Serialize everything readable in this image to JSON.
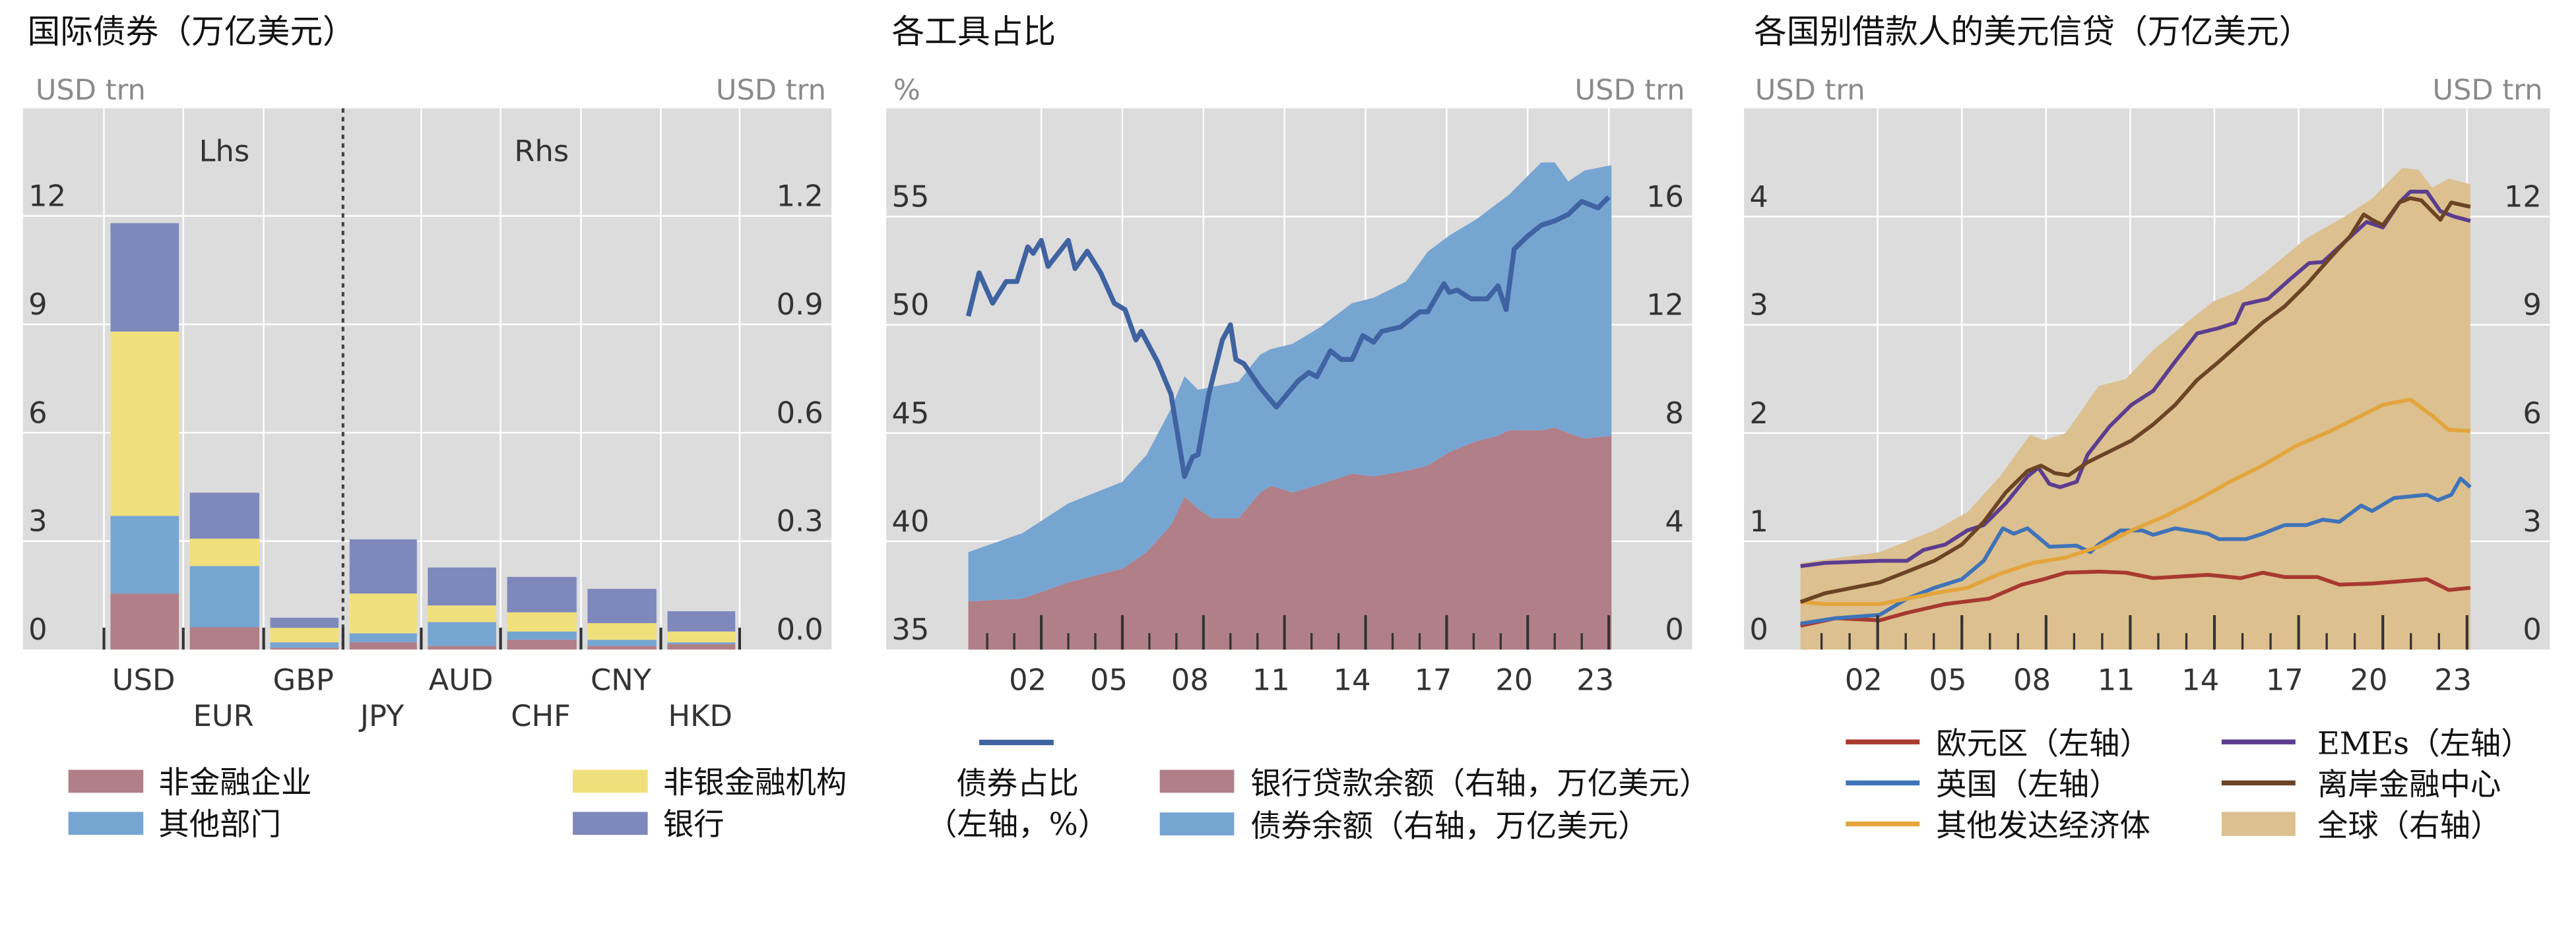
{
  "chart_data": [
    {
      "type": "bar",
      "stacked": true,
      "title": "国际债券（万亿美元）",
      "left_unit": "USD trn",
      "right_unit": "USD trn",
      "annotations": {
        "left": "Lhs",
        "right": "Rhs"
      },
      "left_ticks": [
        "0",
        "3",
        "6",
        "9",
        "12"
      ],
      "left_tick_values": [
        0,
        3,
        6,
        9,
        12
      ],
      "right_ticks": [
        "0.0",
        "0.3",
        "0.6",
        "0.9",
        "1.2"
      ],
      "right_tick_values": [
        0,
        0.3,
        0.6,
        0.9,
        1.2
      ],
      "ylim_left": [
        0,
        15
      ],
      "ylim_right": [
        0,
        1.5
      ],
      "grid": true,
      "categories": [
        "USD",
        "EUR",
        "GBP",
        "JPY",
        "AUD",
        "CHF",
        "CNY",
        "HKD"
      ],
      "category_axis": [
        "left",
        "left",
        "left",
        "right",
        "right",
        "right",
        "right",
        "right"
      ],
      "series": [
        {
          "name": "非金融企业",
          "color": "#b07f88",
          "values": [
            1.55,
            0.62,
            0.05,
            0.02,
            0.01,
            0.027,
            0.01,
            0.015
          ]
        },
        {
          "name": "其他部门",
          "color": "#77a5d2",
          "values": [
            2.15,
            1.69,
            0.15,
            0.025,
            0.066,
            0.023,
            0.017,
            0.005
          ]
        },
        {
          "name": "非银金融机构",
          "color": "#f0e07c",
          "values": [
            5.1,
            0.76,
            0.4,
            0.11,
            0.046,
            0.053,
            0.046,
            0.03
          ]
        },
        {
          "name": "银行",
          "color": "#7e88bb",
          "values": [
            3.0,
            1.27,
            0.28,
            0.15,
            0.105,
            0.098,
            0.095,
            0.056
          ]
        }
      ]
    },
    {
      "type": "area",
      "title": "各工具占比",
      "left_unit": "%",
      "right_unit": "USD trn",
      "left_ticks": [
        "35",
        "40",
        "45",
        "50",
        "55"
      ],
      "left_tick_values": [
        35,
        40,
        45,
        50,
        55
      ],
      "right_ticks": [
        "0",
        "4",
        "8",
        "12",
        "16"
      ],
      "right_tick_values": [
        0,
        4,
        8,
        12,
        16
      ],
      "ylim_left": [
        35,
        60
      ],
      "ylim_right": [
        0,
        20
      ],
      "x_ticks": [
        "02",
        "05",
        "08",
        "11",
        "14",
        "17",
        "20",
        "23"
      ],
      "x_tick_years": [
        2002,
        2005,
        2008,
        2011,
        2014,
        2017,
        2020,
        2023
      ],
      "grid": true,
      "legend_line": {
        "name_line1": "债券占比",
        "name_line2": "（左轴，%）",
        "color": "#3f62a0"
      },
      "series": [
        {
          "name": "银行贷款余额（右轴，万亿美元）",
          "axis": "right",
          "kind": "area",
          "stack": "base",
          "color": "#b07f88",
          "x": [
            2000.3,
            2002.3,
            2004.0,
            2006.0,
            2006.9,
            2007.8,
            2008.3,
            2008.8,
            2009.3,
            2010.3,
            2011.1,
            2011.5,
            2012.3,
            2013.3,
            2014.5,
            2015.3,
            2016.5,
            2017.3,
            2018.1,
            2019.1,
            2019.9,
            2020.3,
            2021.5,
            2022.0,
            2022.5,
            2023.1,
            2024.1
          ],
          "y": [
            1.78,
            1.88,
            2.48,
            2.99,
            3.6,
            4.6,
            5.65,
            5.2,
            4.85,
            4.85,
            5.8,
            6.05,
            5.8,
            6.1,
            6.5,
            6.4,
            6.6,
            6.8,
            7.3,
            7.7,
            7.9,
            8.1,
            8.1,
            8.2,
            8.0,
            7.8,
            7.9
          ]
        },
        {
          "name": "债券余额（右轴，万亿美元）",
          "axis": "right",
          "kind": "area",
          "stack": "on-top",
          "color": "#77a5d2",
          "x": [
            2000.3,
            2002.3,
            2004.0,
            2006.0,
            2006.9,
            2007.8,
            2008.3,
            2008.8,
            2009.3,
            2010.3,
            2011.1,
            2011.5,
            2012.3,
            2013.3,
            2014.5,
            2015.3,
            2016.5,
            2017.3,
            2018.1,
            2019.1,
            2019.9,
            2020.3,
            2021.5,
            2022.0,
            2022.5,
            2023.1,
            2024.1
          ],
          "y": [
            1.82,
            2.42,
            2.92,
            3.21,
            3.6,
            4.3,
            4.45,
            4.4,
            4.85,
            5.05,
            5.1,
            5.05,
            5.5,
            5.8,
            6.3,
            6.6,
            7.0,
            7.9,
            8.0,
            8.2,
            8.6,
            8.7,
            9.9,
            9.8,
            9.3,
            9.9,
            10.0
          ]
        },
        {
          "name": "债券占比",
          "axis": "left",
          "kind": "line",
          "color": "#3f62a0",
          "x": [
            2000.3,
            2000.7,
            2001.2,
            2001.7,
            2002.1,
            2002.5,
            2002.7,
            2003.0,
            2003.25,
            2004.0,
            2004.25,
            2004.7,
            2005.2,
            2005.7,
            2006.1,
            2006.5,
            2006.7,
            2007.3,
            2007.8,
            2008.3,
            2008.6,
            2008.8,
            2009.2,
            2009.7,
            2010.0,
            2010.2,
            2010.5,
            2011.1,
            2011.7,
            2012.1,
            2012.5,
            2012.9,
            2013.2,
            2013.7,
            2014.1,
            2014.5,
            2014.9,
            2015.3,
            2015.6,
            2016.3,
            2016.7,
            2017.0,
            2017.3,
            2017.9,
            2018.1,
            2018.4,
            2018.9,
            2019.5,
            2019.9,
            2020.2,
            2020.5,
            2021.0,
            2021.5,
            2022.0,
            2022.5,
            2023.0,
            2023.6,
            2024.0
          ],
          "y": [
            50.4,
            52.4,
            51.0,
            52.0,
            52.0,
            53.6,
            53.3,
            53.9,
            52.7,
            53.9,
            52.6,
            53.4,
            52.4,
            51.0,
            50.7,
            49.3,
            49.7,
            48.3,
            46.8,
            43.0,
            43.9,
            44.0,
            46.8,
            49.3,
            50.0,
            48.4,
            48.2,
            47.1,
            46.2,
            46.8,
            47.4,
            47.8,
            47.6,
            48.8,
            48.4,
            48.4,
            49.5,
            49.2,
            49.7,
            49.9,
            50.3,
            50.6,
            50.6,
            51.9,
            51.5,
            51.6,
            51.2,
            51.2,
            51.8,
            50.7,
            53.5,
            54.1,
            54.6,
            54.8,
            55.1,
            55.7,
            55.4,
            55.9
          ]
        }
      ]
    },
    {
      "type": "line",
      "title": "各国别借款人的美元信贷（万亿美元）",
      "left_unit": "USD trn",
      "right_unit": "USD trn",
      "left_ticks": [
        "0",
        "1",
        "2",
        "3",
        "4"
      ],
      "left_tick_values": [
        0,
        1,
        2,
        3,
        4
      ],
      "right_ticks": [
        "0",
        "3",
        "6",
        "9",
        "12"
      ],
      "right_tick_values": [
        0,
        3,
        6,
        9,
        12
      ],
      "ylim_left": [
        0,
        5
      ],
      "ylim_right": [
        0,
        15
      ],
      "x_ticks": [
        "02",
        "05",
        "08",
        "11",
        "14",
        "17",
        "20",
        "23"
      ],
      "x_tick_years": [
        2002,
        2005,
        2008,
        2011,
        2014,
        2017,
        2020,
        2023
      ],
      "grid": true,
      "series": [
        {
          "name": "全球（右轴）",
          "axis": "right",
          "kind": "area",
          "color": "#dcc08f",
          "x": [
            2000.25,
            2003.07,
            2005.02,
            2006.19,
            2007.36,
            2008.43,
            2008.92,
            2009.7,
            2010.87,
            2011.84,
            2012.82,
            2013.99,
            2014.96,
            2015.94,
            2016.72,
            2018.28,
            2019.64,
            2020.62,
            2021.69,
            2022.27,
            2022.76,
            2023.35,
            2024.12
          ],
          "y": [
            2.4,
            2.7,
            3.3,
            3.8,
            4.8,
            5.95,
            5.8,
            6.0,
            7.3,
            7.5,
            8.3,
            9.05,
            9.65,
            9.95,
            10.4,
            11.4,
            12.0,
            12.5,
            13.35,
            13.3,
            12.8,
            13.05,
            12.9
          ]
        },
        {
          "name": "欧元区（左轴）",
          "axis": "left",
          "kind": "line",
          "color": "#a8392f",
          "x": [
            2000.25,
            2001.51,
            2003.07,
            2004.05,
            2005.41,
            2006.97,
            2008.14,
            2008.92,
            2009.7,
            2010.87,
            2011.84,
            2012.82,
            2014.77,
            2015.94,
            2016.72,
            2017.5,
            2018.67,
            2019.45,
            2020.62,
            2022.57,
            2023.35,
            2024.12
          ],
          "y": [
            0.22,
            0.29,
            0.27,
            0.34,
            0.42,
            0.47,
            0.6,
            0.65,
            0.71,
            0.72,
            0.71,
            0.66,
            0.69,
            0.66,
            0.71,
            0.67,
            0.67,
            0.6,
            0.61,
            0.65,
            0.55,
            0.57
          ]
        },
        {
          "name": "英国（左轴）",
          "axis": "left",
          "kind": "line",
          "color": "#3f73b8",
          "x": [
            2000.25,
            2001.51,
            2003.07,
            2004.05,
            2005.02,
            2006.0,
            2006.78,
            2007.46,
            2007.85,
            2008.34,
            2009.12,
            2010.09,
            2010.58,
            2010.87,
            2011.65,
            2012.43,
            2012.82,
            2013.6,
            2014.77,
            2015.16,
            2016.13,
            2016.72,
            2017.5,
            2018.28,
            2018.86,
            2019.45,
            2020.23,
            2020.62,
            2021.4,
            2022.57,
            2022.96,
            2023.44,
            2023.77,
            2024.12
          ],
          "y": [
            0.24,
            0.29,
            0.32,
            0.47,
            0.57,
            0.65,
            0.82,
            1.12,
            1.07,
            1.12,
            0.95,
            0.96,
            0.9,
            0.97,
            1.1,
            1.1,
            1.06,
            1.12,
            1.07,
            1.02,
            1.02,
            1.07,
            1.15,
            1.15,
            1.2,
            1.18,
            1.33,
            1.28,
            1.4,
            1.43,
            1.38,
            1.43,
            1.58,
            1.5
          ]
        },
        {
          "name": "其他发达经济体",
          "axis": "left",
          "kind": "line",
          "color": "#e3a53c",
          "x": [
            2000.25,
            2001.12,
            2003.07,
            2005.02,
            2006.19,
            2007.36,
            2008.53,
            2009.7,
            2010.87,
            2012.04,
            2013.21,
            2014.38,
            2015.55,
            2016.72,
            2017.89,
            2019.06,
            2020.23,
            2021.0,
            2021.98,
            2022.76,
            2023.35,
            2024.12
          ],
          "y": [
            0.44,
            0.42,
            0.42,
            0.52,
            0.57,
            0.7,
            0.8,
            0.85,
            0.95,
            1.1,
            1.23,
            1.38,
            1.55,
            1.7,
            1.88,
            2.01,
            2.16,
            2.26,
            2.31,
            2.16,
            2.03,
            2.02
          ]
        },
        {
          "name": "EMEs（左轴）",
          "axis": "left",
          "kind": "line",
          "color": "#5b3d8f",
          "x": [
            2000.25,
            2001.12,
            2003.07,
            2004.05,
            2004.63,
            2005.41,
            2006.19,
            2006.78,
            2007.56,
            2008.34,
            2008.73,
            2009.12,
            2009.5,
            2010.09,
            2010.48,
            2011.26,
            2012.04,
            2012.82,
            2013.6,
            2014.38,
            2015.16,
            2015.74,
            2016.04,
            2016.91,
            2017.69,
            2018.37,
            2018.86,
            2019.45,
            2020.42,
            2021.0,
            2021.59,
            2021.98,
            2022.57,
            2023.05,
            2023.54,
            2024.12
          ],
          "y": [
            0.77,
            0.8,
            0.82,
            0.82,
            0.92,
            0.97,
            1.1,
            1.15,
            1.35,
            1.6,
            1.68,
            1.53,
            1.5,
            1.55,
            1.8,
            2.06,
            2.26,
            2.39,
            2.66,
            2.92,
            2.97,
            3.02,
            3.19,
            3.24,
            3.42,
            3.57,
            3.58,
            3.72,
            3.95,
            3.9,
            4.13,
            4.23,
            4.23,
            4.05,
            4.0,
            3.96
          ]
        },
        {
          "name": "离岸金融中心",
          "axis": "left",
          "kind": "line",
          "color": "#6b4424",
          "x": [
            2000.25,
            2001.12,
            2002.1,
            2003.07,
            2004.05,
            2005.02,
            2006.0,
            2006.78,
            2007.56,
            2008.34,
            2008.82,
            2009.31,
            2009.8,
            2010.48,
            2011.26,
            2012.04,
            2012.82,
            2013.6,
            2014.38,
            2015.16,
            2015.94,
            2016.72,
            2017.5,
            2018.28,
            2019.06,
            2019.84,
            2020.32,
            2020.62,
            2021.0,
            2021.59,
            2021.98,
            2022.37,
            2023.05,
            2023.44,
            2024.12
          ],
          "y": [
            0.44,
            0.52,
            0.57,
            0.62,
            0.72,
            0.82,
            0.97,
            1.18,
            1.45,
            1.65,
            1.7,
            1.63,
            1.61,
            1.73,
            1.83,
            1.93,
            2.08,
            2.26,
            2.49,
            2.66,
            2.84,
            3.02,
            3.17,
            3.37,
            3.6,
            3.82,
            4.02,
            3.97,
            3.92,
            4.13,
            4.17,
            4.15,
            3.97,
            4.13,
            4.09
          ]
        }
      ]
    }
  ]
}
